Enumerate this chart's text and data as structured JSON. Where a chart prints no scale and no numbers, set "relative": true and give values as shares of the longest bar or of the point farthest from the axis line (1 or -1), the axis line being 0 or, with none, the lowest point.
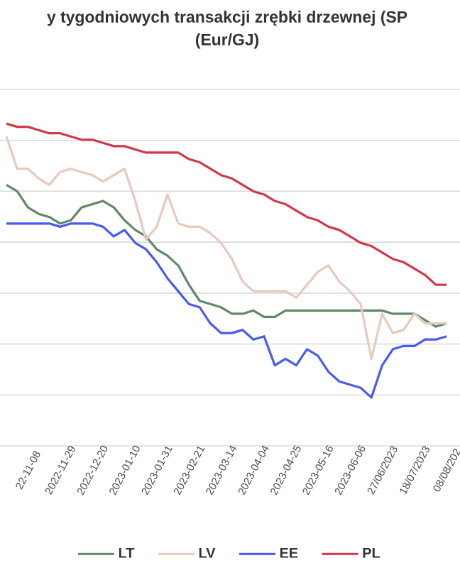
{
  "chart_data": {
    "type": "line",
    "title": "y tygodniowych transakcji zrębki drzewnej (SP",
    "subtitle": "(Eur/GJ)",
    "categories": [
      null,
      null,
      "22-11-08",
      null,
      null,
      "2022-11-29",
      null,
      null,
      "2022-12-20",
      null,
      null,
      "2023-01-10",
      null,
      null,
      "2023-01-31",
      null,
      null,
      "2023-02-21",
      null,
      null,
      "2023-03-14",
      null,
      null,
      "2023-04-04",
      null,
      null,
      "2023-04-25",
      null,
      null,
      "2023-05-16",
      null,
      null,
      "2023-06-06",
      null,
      null,
      "27/06/2023",
      null,
      null,
      "18/07/2023",
      null,
      null,
      "08/08/202"
    ],
    "relative": true,
    "series": [
      {
        "name": "LT",
        "color": "#5e8a6a",
        "values": [
          0.81,
          0.79,
          0.74,
          0.72,
          0.71,
          0.69,
          0.7,
          0.74,
          0.75,
          0.76,
          0.74,
          0.7,
          0.67,
          0.65,
          0.61,
          0.59,
          0.56,
          0.5,
          0.45,
          0.44,
          0.43,
          0.41,
          0.41,
          0.42,
          0.4,
          0.4,
          0.42,
          0.42,
          0.42,
          0.42,
          0.42,
          0.42,
          0.42,
          0.42,
          0.42,
          0.42,
          0.41,
          0.41,
          0.41,
          0.39,
          0.37,
          0.38
        ]
      },
      {
        "name": "LV",
        "color": "#e8c9c0",
        "values": [
          0.96,
          0.86,
          0.86,
          0.83,
          0.81,
          0.85,
          0.86,
          0.85,
          0.84,
          0.82,
          0.84,
          0.86,
          0.76,
          0.64,
          0.68,
          0.78,
          0.69,
          0.68,
          0.68,
          0.66,
          0.63,
          0.58,
          0.51,
          0.48,
          0.48,
          0.48,
          0.48,
          0.46,
          0.5,
          0.54,
          0.56,
          0.51,
          0.48,
          0.44,
          0.27,
          0.41,
          0.35,
          0.36,
          0.41,
          0.38,
          0.38,
          0.38
        ]
      },
      {
        "name": "EE",
        "color": "#4a5af0",
        "values": [
          0.69,
          0.69,
          0.69,
          0.69,
          0.69,
          0.68,
          0.69,
          0.69,
          0.69,
          0.68,
          0.65,
          0.67,
          0.63,
          0.61,
          0.57,
          0.52,
          0.48,
          0.44,
          0.43,
          0.38,
          0.35,
          0.35,
          0.36,
          0.33,
          0.34,
          0.25,
          0.27,
          0.25,
          0.3,
          0.28,
          0.23,
          0.2,
          0.19,
          0.18,
          0.15,
          0.25,
          0.3,
          0.31,
          0.31,
          0.33,
          0.33,
          0.34
        ]
      },
      {
        "name": "PL",
        "color": "#d0384a",
        "values": [
          1.0,
          0.99,
          0.99,
          0.98,
          0.97,
          0.97,
          0.96,
          0.95,
          0.95,
          0.94,
          0.93,
          0.93,
          0.92,
          0.91,
          0.91,
          0.91,
          0.91,
          0.89,
          0.88,
          0.86,
          0.84,
          0.83,
          0.81,
          0.79,
          0.78,
          0.76,
          0.75,
          0.73,
          0.71,
          0.7,
          0.68,
          0.67,
          0.65,
          0.63,
          0.62,
          0.6,
          0.58,
          0.57,
          0.55,
          0.53,
          0.5,
          0.5
        ]
      }
    ],
    "grid": "y",
    "legend": "bottom",
    "marker": "none",
    "line_style": "solid"
  }
}
